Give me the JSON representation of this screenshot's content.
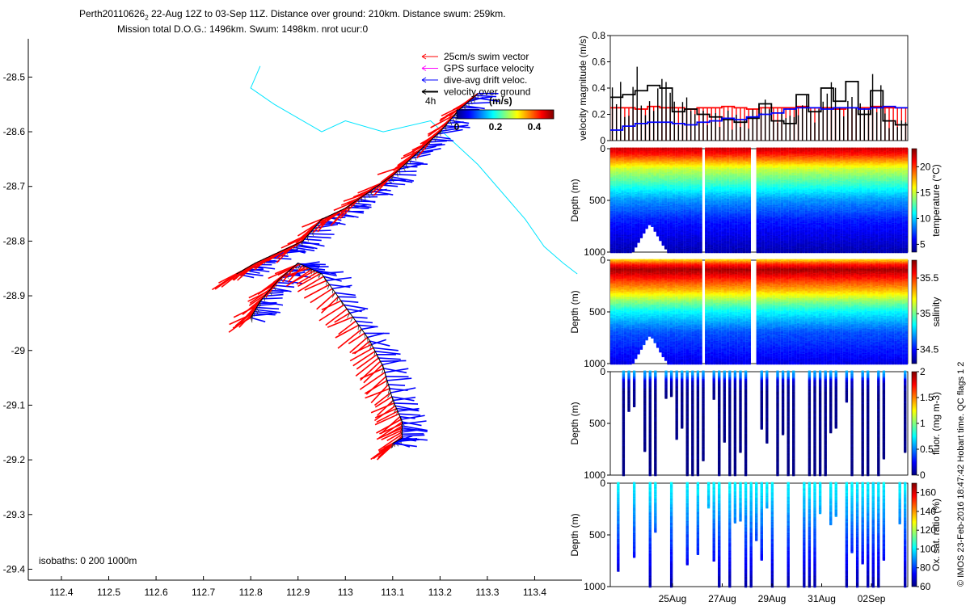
{
  "header": {
    "line1_prefix": "Perth20110626",
    "line1_subscript": "2",
    "line1_rest": " 22-Aug 12Z to 03-Sep 11Z. Distance over ground: 210km. Distance swum: 259km.",
    "line2": "Mission total D.O.G.: 1496km. Swum: 1498km. nrot ucur:0"
  },
  "colors": {
    "swim": "#ff0000",
    "gps": "#ff00ff",
    "drift": "#0000ff",
    "dog": "#000000",
    "isobath": "#00e5ff"
  },
  "chart_data": [
    {
      "id": "track_map",
      "type": "scatter",
      "title": "glider track with velocity vectors",
      "xlabel": "",
      "ylabel": "",
      "xlim": [
        112.33,
        113.5
      ],
      "ylim": [
        -29.42,
        -28.43
      ],
      "xticks": [
        112.4,
        112.5,
        112.6,
        112.7,
        112.8,
        112.9,
        113,
        113.1,
        113.2,
        113.3,
        113.4
      ],
      "xtick_labels": [
        "112.4",
        "112.5",
        "112.6",
        "112.7",
        "112.8",
        "112.9",
        "113",
        "113.1",
        "113.2",
        "113.3",
        "113.4"
      ],
      "yticks": [
        -28.5,
        -28.6,
        -28.7,
        -28.8,
        -28.9,
        -29,
        -29.1,
        -29.2,
        -29.3,
        -29.4
      ],
      "ytick_labels": [
        "-28.5",
        "-28.6",
        "-28.7",
        "-28.8",
        "-28.9",
        "-29",
        "-29.1",
        "-29.2",
        "-29.3",
        "-29.4"
      ],
      "legend": {
        "placement": "top-right",
        "entries": [
          "25cm/s swim vector",
          "GPS surface velocity",
          "dive-avg drift veloc.",
          "velocity over ground"
        ],
        "time_label": "4h",
        "colorbar_title": "(m/s)",
        "colorbar_ticks": [
          "0",
          "0.2",
          "0.4"
        ],
        "colorbar_range": [
          0,
          0.5
        ]
      },
      "isobath_label": "isobaths: 0   200   1000m",
      "isobath": {
        "x": [
          112.82,
          112.8,
          112.85,
          112.95,
          113.0,
          113.08,
          113.18,
          113.28,
          113.38,
          113.42,
          113.46,
          113.49
        ],
        "y": [
          -28.48,
          -28.52,
          -28.55,
          -28.6,
          -28.58,
          -28.6,
          -28.58,
          -28.66,
          -28.76,
          -28.81,
          -28.84,
          -28.86
        ]
      },
      "track": {
        "x": [
          112.8,
          112.82,
          112.86,
          112.9,
          112.95,
          113.0,
          113.05,
          113.08,
          113.1,
          113.12,
          113.12,
          113.1
        ],
        "y": [
          -28.94,
          -28.91,
          -28.87,
          -28.84,
          -28.86,
          -28.92,
          -28.98,
          -29.03,
          -29.09,
          -29.13,
          -29.16,
          -29.17
        ]
      },
      "track_nw": {
        "x": [
          112.77,
          112.81,
          112.86,
          112.91,
          112.95,
          113.0,
          113.05,
          113.1,
          113.15,
          113.2,
          113.24,
          113.28
        ],
        "y": [
          -28.86,
          -28.84,
          -28.82,
          -28.8,
          -28.76,
          -28.74,
          -28.71,
          -28.68,
          -28.64,
          -28.6,
          -28.56,
          -28.53
        ]
      }
    },
    {
      "id": "velocity",
      "type": "line",
      "ylabel": "velocity magnitude (m/s)",
      "ylim": [
        0,
        0.8
      ],
      "yticks": [
        0,
        0.2,
        0.4,
        0.6,
        0.8
      ],
      "ytick_labels": [
        "0",
        "0.2",
        "0.4",
        "0.6",
        "0.8"
      ],
      "xlim": [
        22.5,
        34.46
      ],
      "series": [
        {
          "name": "swim speed",
          "color": "#ff0000",
          "values": [
            0.25,
            0.25,
            0.24,
            0.26,
            0.25,
            0.25,
            0.24,
            0.25,
            0.25,
            0.26,
            0.25,
            0.24,
            0.25,
            0.25,
            0.25,
            0.26,
            0.25,
            0.25,
            0.24,
            0.25,
            0.25,
            0.26,
            0.25,
            0.25
          ]
        },
        {
          "name": "velocity over ground",
          "color": "#000000",
          "values": [
            0.33,
            0.35,
            0.38,
            0.42,
            0.4,
            0.22,
            0.24,
            0.2,
            0.18,
            0.16,
            0.14,
            0.17,
            0.28,
            0.15,
            0.13,
            0.35,
            0.22,
            0.4,
            0.3,
            0.45,
            0.2,
            0.38,
            0.15,
            0.12
          ]
        },
        {
          "name": "dive-avg drift",
          "color": "#0000ff",
          "values": [
            0.08,
            0.11,
            0.13,
            0.14,
            0.14,
            0.13,
            0.12,
            0.14,
            0.15,
            0.17,
            0.16,
            0.18,
            0.2,
            0.21,
            0.24,
            0.25,
            0.25,
            0.24,
            0.25,
            0.25,
            0.24,
            0.25,
            0.26,
            0.25
          ]
        }
      ]
    },
    {
      "id": "temperature",
      "type": "heatmap",
      "ylabel": "Depth (m)",
      "yticks": [
        0,
        500,
        1000
      ],
      "ytick_labels": [
        "0",
        "500",
        "1000"
      ],
      "ylim": [
        1000,
        0
      ],
      "xlim": [
        22.5,
        34.46
      ],
      "colorbar_label": "temperature (°C)",
      "colorbar_ticks": [
        "5",
        "10",
        "15",
        "20"
      ],
      "clim": [
        3.5,
        23.5
      ],
      "profile_depth": [
        0,
        50,
        100,
        150,
        200,
        300,
        400,
        500,
        700,
        1000
      ],
      "profile_value": [
        22,
        21,
        19,
        17,
        15,
        13,
        11,
        9,
        6.5,
        4.5
      ],
      "gaps": [
        [
          26.2,
          26.35
        ],
        [
          28.2,
          28.35
        ]
      ]
    },
    {
      "id": "salinity",
      "type": "heatmap",
      "ylabel": "Depth (m)",
      "yticks": [
        0,
        500,
        1000
      ],
      "ytick_labels": [
        "0",
        "500",
        "1000"
      ],
      "ylim": [
        1000,
        0
      ],
      "xlim": [
        22.5,
        34.46
      ],
      "colorbar_label": "salinity",
      "colorbar_ticks": [
        "34.5",
        "35",
        "35.5"
      ],
      "clim": [
        34.3,
        35.75
      ],
      "profile_depth": [
        0,
        50,
        100,
        150,
        200,
        300,
        400,
        500,
        700,
        1000
      ],
      "profile_value": [
        35.25,
        35.55,
        35.7,
        35.6,
        35.5,
        35.3,
        35.05,
        34.85,
        34.6,
        34.45
      ],
      "gaps": [
        [
          26.2,
          26.35
        ],
        [
          28.2,
          28.35
        ]
      ]
    },
    {
      "id": "fluorescence",
      "type": "heatmap",
      "ylabel": "Depth (m)",
      "yticks": [
        0,
        500,
        1000
      ],
      "ytick_labels": [
        "0",
        "500",
        "1000"
      ],
      "ylim": [
        1000,
        0
      ],
      "xlim": [
        22.5,
        34.46
      ],
      "colorbar_label": "fluor. (mg m-3)",
      "colorbar_ticks": [
        "0",
        "0.5",
        "1",
        "1.5",
        "2"
      ],
      "clim": [
        0,
        2
      ],
      "profile_depth": [
        0,
        50,
        100,
        200,
        1000
      ],
      "profile_value": [
        0.6,
        0.5,
        0.15,
        0.02,
        0.0
      ]
    },
    {
      "id": "oxygen",
      "type": "heatmap",
      "ylabel": "Depth (m)",
      "yticks": [
        0,
        500,
        1000
      ],
      "ytick_labels": [
        "0",
        "500",
        "1000"
      ],
      "ylim": [
        1000,
        0
      ],
      "xlim": [
        22.5,
        34.46
      ],
      "colorbar_label": "Ox. sat. ratio (%)",
      "colorbar_ticks": [
        "60",
        "80",
        "100",
        "120",
        "140",
        "160"
      ],
      "clim": [
        60,
        170
      ],
      "profile_depth": [
        0,
        100,
        300,
        500,
        800,
        1000
      ],
      "profile_value": [
        100,
        98,
        90,
        82,
        72,
        64
      ],
      "xticks": [
        25,
        27,
        29,
        31,
        33
      ],
      "xtick_labels": [
        "25Aug",
        "27Aug",
        "29Aug",
        "31Aug",
        "02Sep"
      ]
    }
  ],
  "side_note": "© IMOS 23-Feb-2016 18:47:42 Hobart time. QC flags 1  2"
}
